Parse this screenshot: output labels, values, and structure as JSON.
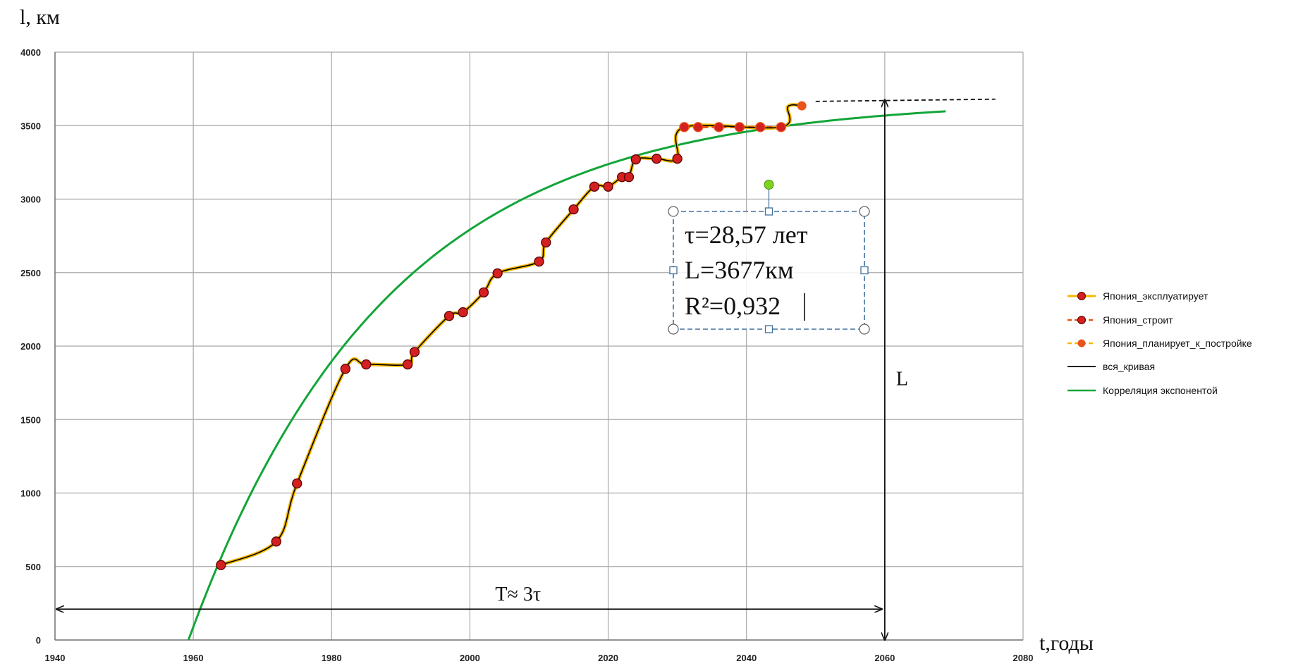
{
  "chart_data": {
    "type": "line",
    "xlabel": "t,годы",
    "ylabel": "l, км",
    "xlim": [
      1940,
      2080
    ],
    "ylim": [
      0,
      4000
    ],
    "x_ticks": [
      "1940",
      "1960",
      "1980",
      "2000",
      "2020",
      "2040",
      "2060",
      "2080"
    ],
    "y_ticks": [
      "0",
      "500",
      "1000",
      "1500",
      "2000",
      "2500",
      "3000",
      "3500",
      "4000"
    ],
    "grid": true,
    "legend_position": "right",
    "colors": {
      "operating": "#F5B800",
      "building": "#E8541A",
      "planned": "#E8541A",
      "marker": "#D42020",
      "whole_curve": "#000000",
      "exp_fit": "#13A538",
      "textbox_border": "#41719C",
      "rotate_handle": "#7ED321"
    },
    "series": [
      {
        "name": "Япония_эксплуатирует",
        "points": [
          [
            1964,
            510
          ],
          [
            1972,
            670
          ],
          [
            1975,
            1065
          ],
          [
            1982,
            1845
          ],
          [
            1985,
            1875
          ],
          [
            1991,
            1875
          ],
          [
            1992,
            1960
          ],
          [
            1997,
            2205
          ],
          [
            1999,
            2230
          ],
          [
            2002,
            2365
          ],
          [
            2004,
            2495
          ],
          [
            2010,
            2575
          ],
          [
            2011,
            2705
          ],
          [
            2015,
            2930
          ],
          [
            2018,
            3085
          ],
          [
            2020,
            3085
          ],
          [
            2022,
            3150
          ],
          [
            2023,
            3150
          ],
          [
            2024,
            3270
          ],
          [
            2027,
            3275
          ],
          [
            2030,
            3275
          ]
        ]
      },
      {
        "name": "Япония_строит",
        "points": [
          [
            2031,
            3490
          ],
          [
            2033,
            3490
          ],
          [
            2036,
            3490
          ],
          [
            2039,
            3490
          ],
          [
            2042,
            3490
          ],
          [
            2045,
            3490
          ]
        ]
      },
      {
        "name": "Япония_планирует_к_постройке",
        "points": [
          [
            2048,
            3635
          ]
        ]
      },
      {
        "name": "вся_кривая",
        "points": [
          [
            1964,
            510
          ],
          [
            1972,
            670
          ],
          [
            1975,
            1065
          ],
          [
            1982,
            1845
          ],
          [
            1985,
            1875
          ],
          [
            1991,
            1875
          ],
          [
            1992,
            1960
          ],
          [
            1997,
            2205
          ],
          [
            1999,
            2230
          ],
          [
            2002,
            2365
          ],
          [
            2004,
            2495
          ],
          [
            2010,
            2575
          ],
          [
            2011,
            2705
          ],
          [
            2015,
            2930
          ],
          [
            2018,
            3085
          ],
          [
            2020,
            3085
          ],
          [
            2022,
            3150
          ],
          [
            2023,
            3150
          ],
          [
            2024,
            3270
          ],
          [
            2027,
            3275
          ],
          [
            2030,
            3275
          ],
          [
            2031,
            3490
          ],
          [
            2045,
            3490
          ],
          [
            2046,
            3630
          ],
          [
            2048,
            3635
          ]
        ]
      },
      {
        "name": "Корреляция экспонентой",
        "model": {
          "L": 3677,
          "tau": 28.57,
          "t0": 1959.3
        },
        "x_range": [
          1959.3,
          2069
        ]
      }
    ],
    "annotations": {
      "textbox_lines": [
        "τ=28,57 лет",
        "L=3677км",
        "R²=0,932"
      ],
      "L_label": "L",
      "T_label": "T≈ 3τ",
      "L_level": 3677,
      "L_arrow_x": 2060,
      "T_arrow_x": [
        1940,
        2060
      ],
      "T_arrow_y": 210,
      "dashed_from": [
        2050,
        3665
      ],
      "dashed_to": [
        2076,
        3680
      ]
    }
  }
}
